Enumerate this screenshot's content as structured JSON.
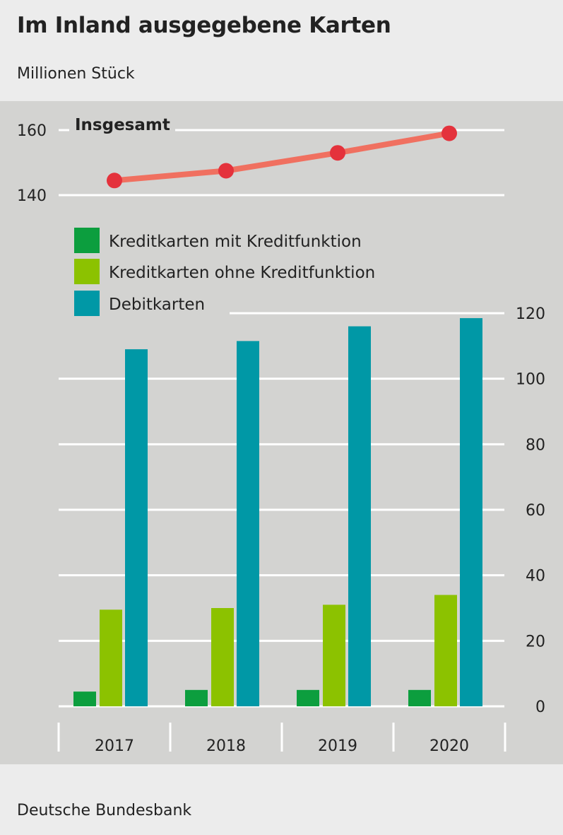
{
  "header": {
    "title": "Im Inland ausgegebene Karten",
    "subtitle": "Millionen Stück"
  },
  "footer": {
    "source": "Deutsche Bundesbank"
  },
  "colors": {
    "kredit_mit": "#0c9e3e",
    "kredit_ohne": "#8cc200",
    "debit": "#0098a6",
    "total_line": "#f07060",
    "total_points": "#e4323c",
    "plot_background": "#d3d3d1",
    "gridline": "#ffffff"
  },
  "chart_data": [
    {
      "type": "line",
      "categories": [
        "2017",
        "2018",
        "2019",
        "2020"
      ],
      "series": [
        {
          "name": "Insgesamt",
          "values": [
            144.5,
            147.5,
            153,
            159
          ]
        }
      ],
      "ylim": [
        140,
        160
      ],
      "yticks": [
        "140",
        "160"
      ],
      "grid": true
    },
    {
      "type": "bar",
      "categories": [
        "2017",
        "2018",
        "2019",
        "2020"
      ],
      "series": [
        {
          "name": "Kreditkarten mit Kreditfunktion",
          "values": [
            4.5,
            5,
            5,
            5
          ]
        },
        {
          "name": "Kreditkarten ohne Kreditfunktion",
          "values": [
            29.5,
            30,
            31,
            34
          ]
        },
        {
          "name": "Debitkarten",
          "values": [
            109,
            111.5,
            116,
            118.5
          ]
        }
      ],
      "ylim": [
        0,
        120
      ],
      "yticks": [
        "0",
        "20",
        "40",
        "60",
        "80",
        "100",
        "120"
      ],
      "legend": "top-left",
      "grid": true
    }
  ]
}
